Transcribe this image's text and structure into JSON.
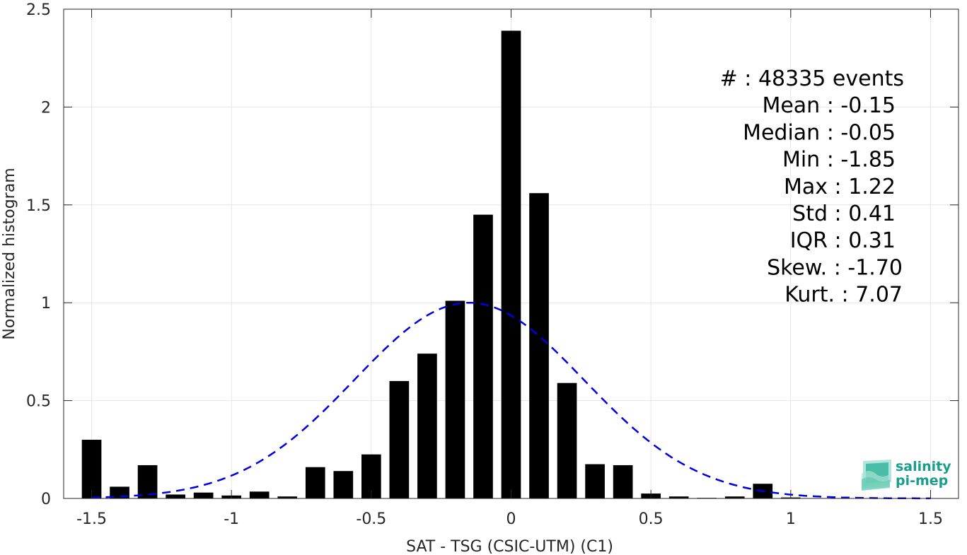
{
  "chart_data": {
    "type": "bar",
    "xlabel": "SAT - TSG (CSIC-UTM) (C1)",
    "ylabel": "Normalized histogram",
    "xlim": [
      -1.6,
      1.6
    ],
    "ylim": [
      0,
      2.5
    ],
    "x_ticks": [
      -1.5,
      -1,
      -0.5,
      0,
      0.5,
      1,
      1.5
    ],
    "x_tick_labels": [
      "-1.5",
      "-1",
      "-0.5",
      "0",
      "0.5",
      "1",
      "1.5"
    ],
    "y_ticks": [
      0,
      0.5,
      1,
      1.5,
      2,
      2.5
    ],
    "y_tick_labels": [
      "0",
      "0.5",
      "1",
      "1.5",
      "2",
      "2.5"
    ],
    "grid": true,
    "bin_width": 0.1,
    "bar_color": "#000000",
    "bins": {
      "x": [
        -1.5,
        -1.4,
        -1.3,
        -1.2,
        -1.1,
        -1.0,
        -0.9,
        -0.8,
        -0.7,
        -0.6,
        -0.5,
        -0.4,
        -0.3,
        -0.2,
        -0.1,
        0.0,
        0.1,
        0.2,
        0.3,
        0.4,
        0.5,
        0.6,
        0.7,
        0.8,
        0.9,
        1.0,
        1.1,
        1.2,
        1.3,
        1.4,
        1.5
      ],
      "values": [
        0.3,
        0.06,
        0.17,
        0.02,
        0.03,
        0.015,
        0.035,
        0.01,
        0.16,
        0.14,
        0.225,
        0.6,
        0.74,
        1.01,
        1.45,
        2.39,
        1.56,
        0.59,
        0.175,
        0.17,
        0.025,
        0.01,
        0.003,
        0.01,
        0.075,
        0.005,
        0,
        0,
        0,
        0,
        0
      ]
    },
    "fit": {
      "type": "normal",
      "mean": -0.15,
      "std": 0.41,
      "line_style": "dashed",
      "color": "#0000e6"
    },
    "stats": [
      "#  : 48335 events",
      "Mean : -0.15",
      "Median : -0.05",
      "Min : -1.85",
      "Max : 1.22",
      "Std : 0.41",
      "IQR : 0.31",
      "Skew. : -1.70",
      "Kurt. : 7.07"
    ]
  },
  "logo": {
    "line1": "salinity",
    "line2": "pi-mep",
    "color": "#1a9e8c"
  }
}
